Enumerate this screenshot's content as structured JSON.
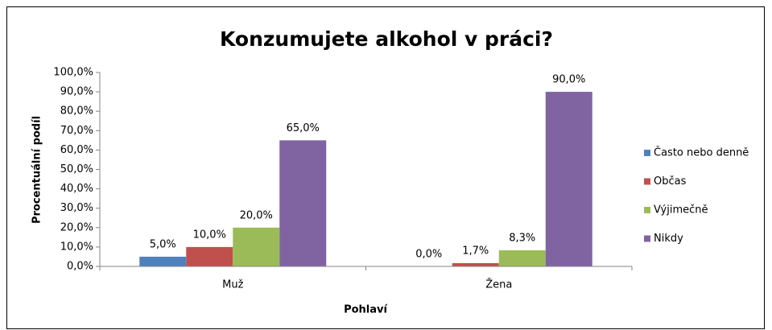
{
  "chart_data": {
    "type": "bar",
    "title": "Konzumujete alkohol v práci?",
    "x_label": "Pohlaví",
    "y_label": "Procentuální podíl",
    "categories": [
      "Muž",
      "Žena"
    ],
    "series": [
      {
        "name": "Často nebo denně",
        "color": "#4f81bd",
        "values": [
          5.0,
          0.0
        ],
        "value_labels": [
          "5,0%",
          "0,0%"
        ]
      },
      {
        "name": "Občas",
        "color": "#c0504d",
        "values": [
          10.0,
          1.7
        ],
        "value_labels": [
          "10,0%",
          "1,7%"
        ]
      },
      {
        "name": "Výjimečně",
        "color": "#9bbb59",
        "values": [
          20.0,
          8.3
        ],
        "value_labels": [
          "20,0%",
          "8,3%"
        ]
      },
      {
        "name": "Nikdy",
        "color": "#8064a2",
        "values": [
          65.0,
          90.0
        ],
        "value_labels": [
          "65,0%",
          "90,0%"
        ]
      }
    ],
    "ylim": [
      0,
      100
    ],
    "yticks": [
      {
        "value": 0,
        "label": "0,0%"
      },
      {
        "value": 10,
        "label": "10,0%"
      },
      {
        "value": 20,
        "label": "20,0%"
      },
      {
        "value": 30,
        "label": "30,0%"
      },
      {
        "value": 40,
        "label": "40,0%"
      },
      {
        "value": 50,
        "label": "50,0%"
      },
      {
        "value": 60,
        "label": "60,0%"
      },
      {
        "value": 70,
        "label": "70,0%"
      },
      {
        "value": 80,
        "label": "80,0%"
      },
      {
        "value": 90,
        "label": "90,0%"
      },
      {
        "value": 100,
        "label": "100,0%"
      }
    ],
    "grid": false,
    "legend": "right"
  }
}
